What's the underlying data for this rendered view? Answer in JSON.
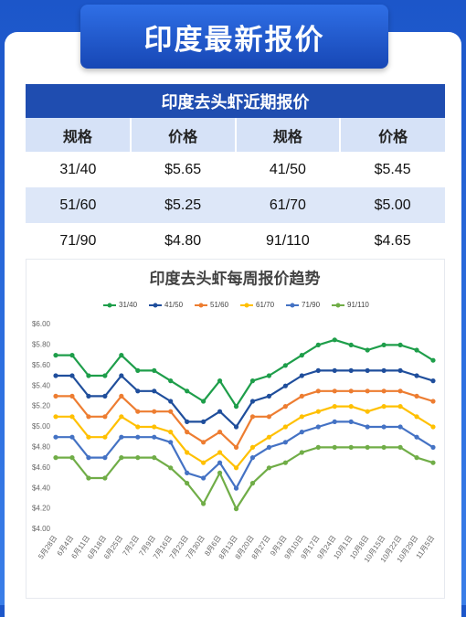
{
  "header": {
    "title": "印度最新报价"
  },
  "table": {
    "title": "印度去头虾近期报价",
    "columns": [
      "规格",
      "价格",
      "规格",
      "价格"
    ],
    "rows": [
      [
        "31/40",
        "$5.65",
        "41/50",
        "$5.45"
      ],
      [
        "51/60",
        "$5.25",
        "61/70",
        "$5.00"
      ],
      [
        "71/90",
        "$4.80",
        "91/110",
        "$4.65"
      ]
    ]
  },
  "chart_data": {
    "type": "line",
    "title": "印度去头虾每周报价趋势",
    "categories": [
      "5月28日",
      "6月4日",
      "6月11日",
      "6月18日",
      "6月25日",
      "7月2日",
      "7月9日",
      "7月16日",
      "7月23日",
      "7月30日",
      "8月6日",
      "8月13日",
      "8月20日",
      "8月27日",
      "9月3日",
      "9月10日",
      "9月17日",
      "9月24日",
      "10月1日",
      "10月8日",
      "10月15日",
      "10月22日",
      "10月29日",
      "11月5日"
    ],
    "series": [
      {
        "name": "31/40",
        "color": "#1e9e4a",
        "values": [
          5.7,
          5.7,
          5.5,
          5.5,
          5.7,
          5.55,
          5.55,
          5.45,
          5.35,
          5.25,
          5.45,
          5.2,
          5.45,
          5.5,
          5.6,
          5.7,
          5.8,
          5.85,
          5.8,
          5.75,
          5.8,
          5.8,
          5.75,
          5.65
        ]
      },
      {
        "name": "41/50",
        "color": "#1f4e9c",
        "values": [
          5.5,
          5.5,
          5.3,
          5.3,
          5.5,
          5.35,
          5.35,
          5.25,
          5.05,
          5.05,
          5.15,
          5.0,
          5.25,
          5.3,
          5.4,
          5.5,
          5.55,
          5.55,
          5.55,
          5.55,
          5.55,
          5.55,
          5.5,
          5.45
        ]
      },
      {
        "name": "51/60",
        "color": "#ed7d31",
        "values": [
          5.3,
          5.3,
          5.1,
          5.1,
          5.3,
          5.15,
          5.15,
          5.15,
          4.95,
          4.85,
          4.95,
          4.8,
          5.1,
          5.1,
          5.2,
          5.3,
          5.35,
          5.35,
          5.35,
          5.35,
          5.35,
          5.35,
          5.3,
          5.25
        ]
      },
      {
        "name": "61/70",
        "color": "#ffc000",
        "values": [
          5.1,
          5.1,
          4.9,
          4.9,
          5.1,
          5.0,
          5.0,
          4.95,
          4.75,
          4.65,
          4.75,
          4.6,
          4.8,
          4.9,
          5.0,
          5.1,
          5.15,
          5.2,
          5.2,
          5.15,
          5.2,
          5.2,
          5.1,
          5.0
        ]
      },
      {
        "name": "71/90",
        "color": "#4472c4",
        "values": [
          4.9,
          4.9,
          4.7,
          4.7,
          4.9,
          4.9,
          4.9,
          4.85,
          4.55,
          4.5,
          4.65,
          4.4,
          4.7,
          4.8,
          4.85,
          4.95,
          5.0,
          5.05,
          5.05,
          5.0,
          5.0,
          5.0,
          4.9,
          4.8
        ]
      },
      {
        "name": "91/110",
        "color": "#70ad47",
        "values": [
          4.7,
          4.7,
          4.5,
          4.5,
          4.7,
          4.7,
          4.7,
          4.6,
          4.45,
          4.25,
          4.55,
          4.2,
          4.45,
          4.6,
          4.65,
          4.75,
          4.8,
          4.8,
          4.8,
          4.8,
          4.8,
          4.8,
          4.7,
          4.65
        ]
      }
    ],
    "ylim": [
      4.0,
      6.0
    ],
    "yticks": [
      {
        "value": 4.0,
        "label": "$4.00"
      },
      {
        "value": 4.2,
        "label": "$4.20"
      },
      {
        "value": 4.4,
        "label": "$4.40"
      },
      {
        "value": 4.6,
        "label": "$4.60"
      },
      {
        "value": 4.8,
        "label": "$4.80"
      },
      {
        "value": 5.0,
        "label": "$5.00"
      },
      {
        "value": 5.2,
        "label": "$5.20"
      },
      {
        "value": 5.4,
        "label": "$5.40"
      },
      {
        "value": 5.6,
        "label": "$5.60"
      },
      {
        "value": 5.8,
        "label": "$5.80"
      },
      {
        "value": 6.0,
        "label": "$6.00"
      }
    ],
    "grid": false,
    "legend": "top"
  }
}
